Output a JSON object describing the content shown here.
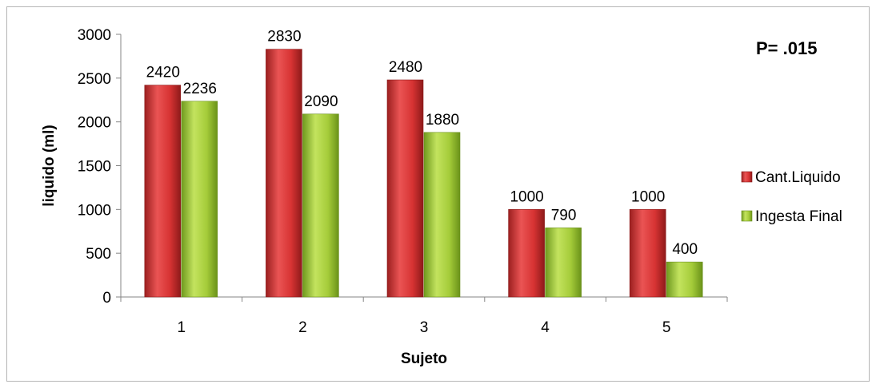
{
  "chart_data": {
    "type": "bar",
    "title": "",
    "xlabel": "Sujeto",
    "ylabel": "liquido  (ml)",
    "ylim": [
      0,
      3000
    ],
    "yticks": [
      0,
      500,
      1000,
      1500,
      2000,
      2500,
      3000
    ],
    "categories": [
      "1",
      "2",
      "3",
      "4",
      "5"
    ],
    "series": [
      {
        "name": "Cant.Liquido",
        "values": [
          2420,
          2830,
          2480,
          1000,
          1000
        ],
        "color": "#d83a3a"
      },
      {
        "name": "Ingesta Final",
        "values": [
          2236,
          2090,
          1880,
          790,
          400
        ],
        "color": "#a6cc3c"
      }
    ],
    "annotation": "P= .015",
    "legend_position": "right",
    "grid": false
  }
}
